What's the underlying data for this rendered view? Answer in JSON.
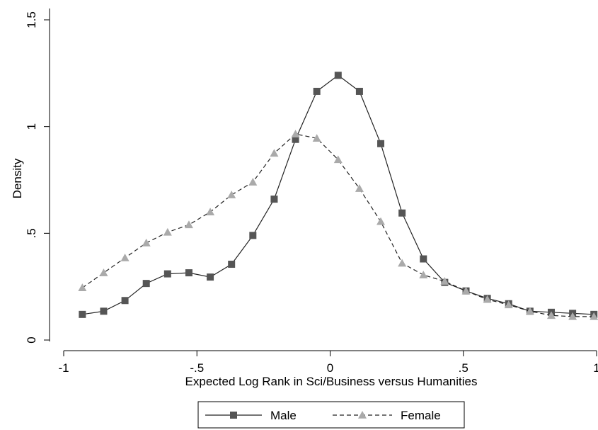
{
  "chart_data": {
    "type": "line",
    "xlabel": "Expected Log Rank in Sci/Business versus Humanities",
    "ylabel": "Density",
    "xlim": [
      -1,
      1
    ],
    "ylim": [
      0,
      1.5
    ],
    "xticks": [
      -1,
      -0.5,
      0,
      0.5,
      1
    ],
    "xtick_labels": [
      "-1",
      "-.5",
      "0",
      ".5",
      "1"
    ],
    "yticks": [
      0,
      0.5,
      1,
      1.5
    ],
    "ytick_labels": [
      "0",
      ".5",
      "1",
      "1.5"
    ],
    "grid": false,
    "legend_position": "bottom",
    "series": [
      {
        "name": "Male",
        "line_style": "solid",
        "marker": "square",
        "color": "#555555",
        "x": [
          -0.93,
          -0.85,
          -0.77,
          -0.69,
          -0.61,
          -0.53,
          -0.45,
          -0.37,
          -0.29,
          -0.21,
          -0.13,
          -0.05,
          0.03,
          0.11,
          0.19,
          0.27,
          0.35,
          0.43,
          0.51,
          0.59,
          0.67,
          0.75,
          0.83,
          0.91,
          0.99
        ],
        "y": [
          0.12,
          0.135,
          0.185,
          0.265,
          0.31,
          0.315,
          0.295,
          0.355,
          0.49,
          0.66,
          0.94,
          1.165,
          1.24,
          1.165,
          0.92,
          0.595,
          0.38,
          0.27,
          0.23,
          0.195,
          0.17,
          0.135,
          0.13,
          0.125,
          0.12
        ]
      },
      {
        "name": "Female",
        "line_style": "dashed",
        "marker": "triangle",
        "color": "#aaaaaa",
        "x": [
          -0.93,
          -0.85,
          -0.77,
          -0.69,
          -0.61,
          -0.53,
          -0.45,
          -0.37,
          -0.29,
          -0.21,
          -0.13,
          -0.05,
          0.03,
          0.11,
          0.19,
          0.27,
          0.35,
          0.43,
          0.51,
          0.59,
          0.67,
          0.75,
          0.83,
          0.91,
          0.99
        ],
        "y": [
          0.245,
          0.315,
          0.385,
          0.455,
          0.505,
          0.54,
          0.6,
          0.68,
          0.74,
          0.875,
          0.965,
          0.945,
          0.845,
          0.71,
          0.555,
          0.36,
          0.305,
          0.275,
          0.23,
          0.19,
          0.165,
          0.135,
          0.115,
          0.11,
          0.11
        ]
      }
    ]
  }
}
